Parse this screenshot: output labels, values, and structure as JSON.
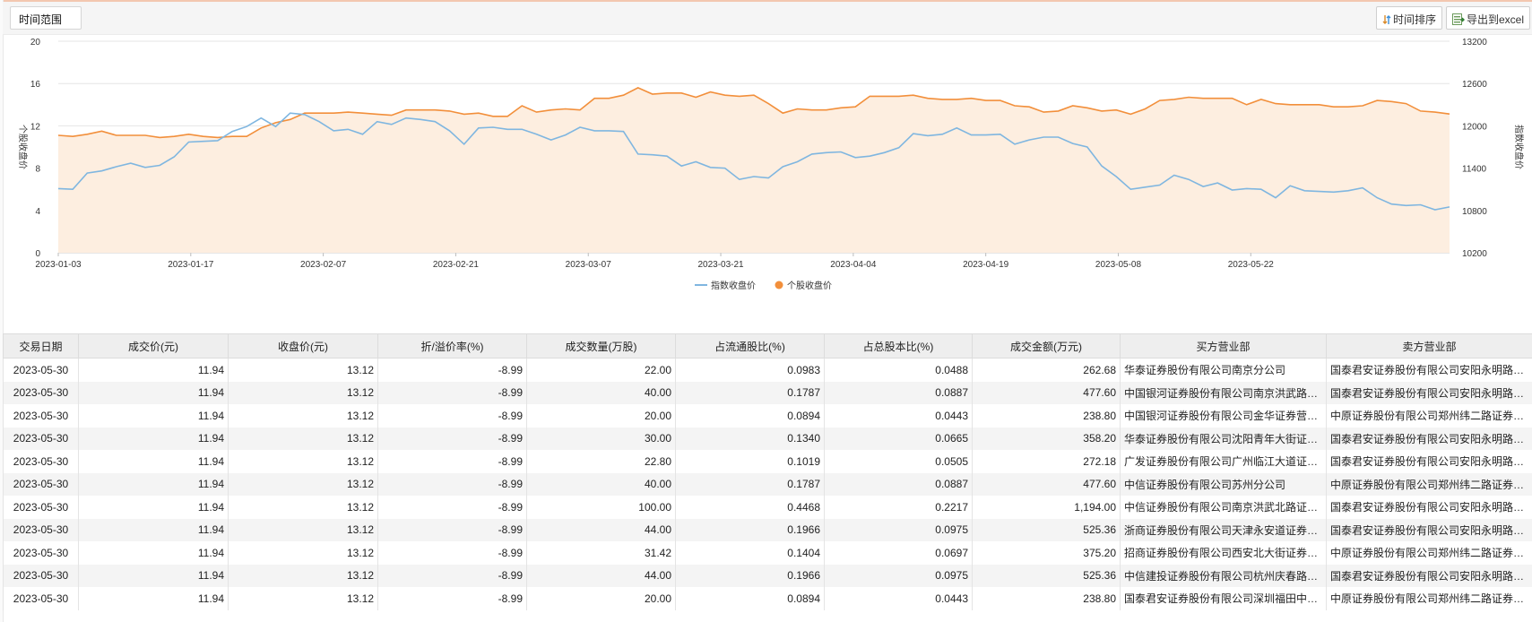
{
  "toolbar": {
    "time_range_label": "时间范围",
    "sort_by_time_label": "时间排序",
    "export_label": "导出到excel"
  },
  "chart_data": {
    "type": "line",
    "x_ticks": [
      "2023-01-03",
      "2023-01-17",
      "2023-02-07",
      "2023-02-21",
      "2023-03-07",
      "2023-03-21",
      "2023-04-04",
      "2023-04-19",
      "2023-05-08",
      "2023-05-22"
    ],
    "ylabel_left": "个股收盘价",
    "ylabel_right": "指数收盘价",
    "ylim_left": [
      0,
      20
    ],
    "yticks_left": [
      0,
      4,
      8,
      12,
      16,
      20
    ],
    "ylim_right": [
      10200,
      13200
    ],
    "yticks_right": [
      10200,
      10800,
      11400,
      12000,
      12600,
      13200
    ],
    "grid": true,
    "legend_position": "bottom-center",
    "series": [
      {
        "name": "指数收盘价",
        "axis": "right",
        "type": "line",
        "color": "#7fb6e0",
        "values": [
          11110,
          11100,
          11330,
          11360,
          11420,
          11470,
          11410,
          11440,
          11560,
          11770,
          11780,
          11790,
          11920,
          11990,
          12110,
          11990,
          12180,
          12160,
          12060,
          11930,
          11950,
          11880,
          12060,
          12020,
          12110,
          12090,
          12060,
          11930,
          11740,
          11970,
          11980,
          11950,
          11950,
          11880,
          11800,
          11870,
          11980,
          11930,
          11930,
          11920,
          11600,
          11590,
          11570,
          11430,
          11490,
          11410,
          11400,
          11240,
          11280,
          11260,
          11420,
          11490,
          11600,
          11620,
          11630,
          11550,
          11570,
          11620,
          11690,
          11890,
          11860,
          11880,
          11970,
          11870,
          11870,
          11880,
          11740,
          11800,
          11840,
          11840,
          11750,
          11700,
          11430,
          11280,
          11100,
          11130,
          11160,
          11300,
          11240,
          11140,
          11190,
          11090,
          11110,
          11100,
          10980,
          11150,
          11080,
          11070,
          11060,
          11080,
          11120,
          10980,
          10890,
          10870,
          10880,
          10810,
          10850
        ]
      },
      {
        "name": "个股收盘价",
        "axis": "left",
        "type": "area",
        "color": "#f28f3b",
        "fill": "#fdeee0",
        "values": [
          11.1,
          11.0,
          11.2,
          11.5,
          11.1,
          11.1,
          11.1,
          10.9,
          11.0,
          11.2,
          11.0,
          10.9,
          11.0,
          11.0,
          11.8,
          12.3,
          12.6,
          13.2,
          13.2,
          13.2,
          13.3,
          13.2,
          13.1,
          13.0,
          13.5,
          13.5,
          13.5,
          13.4,
          13.1,
          13.2,
          12.9,
          12.9,
          13.9,
          13.3,
          13.5,
          13.6,
          13.5,
          14.6,
          14.6,
          14.9,
          15.6,
          15.0,
          15.1,
          15.1,
          14.7,
          15.2,
          14.9,
          14.8,
          14.9,
          14.1,
          13.2,
          13.6,
          13.5,
          13.5,
          13.7,
          13.8,
          14.8,
          14.8,
          14.8,
          14.9,
          14.6,
          14.5,
          14.5,
          14.6,
          14.4,
          14.4,
          13.9,
          13.8,
          13.3,
          13.4,
          13.9,
          13.7,
          13.4,
          13.5,
          13.1,
          13.6,
          14.4,
          14.5,
          14.7,
          14.6,
          14.6,
          14.6,
          14.0,
          14.5,
          14.1,
          14.0,
          14.0,
          14.0,
          13.8,
          13.8,
          13.9,
          14.4,
          14.3,
          14.1,
          13.4,
          13.3,
          13.12
        ]
      }
    ]
  },
  "table": {
    "headers": [
      "交易日期",
      "成交价(元)",
      "收盘价(元)",
      "折/溢价率(%)",
      "成交数量(万股)",
      "占流通股比(%)",
      "占总股本比(%)",
      "成交金额(万元)",
      "买方营业部",
      "卖方营业部"
    ],
    "rows": [
      [
        "2023-05-30",
        "11.94",
        "13.12",
        "-8.99",
        "22.00",
        "0.0983",
        "0.0488",
        "262.68",
        "华泰证券股份有限公司南京分公司",
        "国泰君安证券股份有限公司安阳永明路证券营业部"
      ],
      [
        "2023-05-30",
        "11.94",
        "13.12",
        "-8.99",
        "40.00",
        "0.1787",
        "0.0887",
        "477.60",
        "中国银河证券股份有限公司南京洪武路证券营业部",
        "国泰君安证券股份有限公司安阳永明路证券营业部"
      ],
      [
        "2023-05-30",
        "11.94",
        "13.12",
        "-8.99",
        "20.00",
        "0.0894",
        "0.0443",
        "238.80",
        "中国银河证券股份有限公司金华证券营业部",
        "中原证券股份有限公司郑州纬二路证券营业部"
      ],
      [
        "2023-05-30",
        "11.94",
        "13.12",
        "-8.99",
        "30.00",
        "0.1340",
        "0.0665",
        "358.20",
        "华泰证券股份有限公司沈阳青年大街证券营业部",
        "国泰君安证券股份有限公司安阳永明路证券营业部"
      ],
      [
        "2023-05-30",
        "11.94",
        "13.12",
        "-8.99",
        "22.80",
        "0.1019",
        "0.0505",
        "272.18",
        "广发证券股份有限公司广州临江大道证券营业部",
        "国泰君安证券股份有限公司安阳永明路证券营业部"
      ],
      [
        "2023-05-30",
        "11.94",
        "13.12",
        "-8.99",
        "40.00",
        "0.1787",
        "0.0887",
        "477.60",
        "中信证券股份有限公司苏州分公司",
        "中原证券股份有限公司郑州纬二路证券营业部"
      ],
      [
        "2023-05-30",
        "11.94",
        "13.12",
        "-8.99",
        "100.00",
        "0.4468",
        "0.2217",
        "1,194.00",
        "中信证券股份有限公司南京洪武北路证券营业部",
        "国泰君安证券股份有限公司安阳永明路证券营业部"
      ],
      [
        "2023-05-30",
        "11.94",
        "13.12",
        "-8.99",
        "44.00",
        "0.1966",
        "0.0975",
        "525.36",
        "浙商证券股份有限公司天津永安道证券营业部",
        "国泰君安证券股份有限公司安阳永明路证券营业部"
      ],
      [
        "2023-05-30",
        "11.94",
        "13.12",
        "-8.99",
        "31.42",
        "0.1404",
        "0.0697",
        "375.20",
        "招商证券股份有限公司西安北大街证券营业部",
        "中原证券股份有限公司郑州纬二路证券营业部"
      ],
      [
        "2023-05-30",
        "11.94",
        "13.12",
        "-8.99",
        "44.00",
        "0.1966",
        "0.0975",
        "525.36",
        "中信建投证券股份有限公司杭州庆春路证券营业部",
        "国泰君安证券股份有限公司安阳永明路证券营业部"
      ],
      [
        "2023-05-30",
        "11.94",
        "13.12",
        "-8.99",
        "20.00",
        "0.0894",
        "0.0443",
        "238.80",
        "国泰君安证券股份有限公司深圳福田中心区证券营业部",
        "中原证券股份有限公司郑州纬二路证券营业部"
      ]
    ]
  }
}
